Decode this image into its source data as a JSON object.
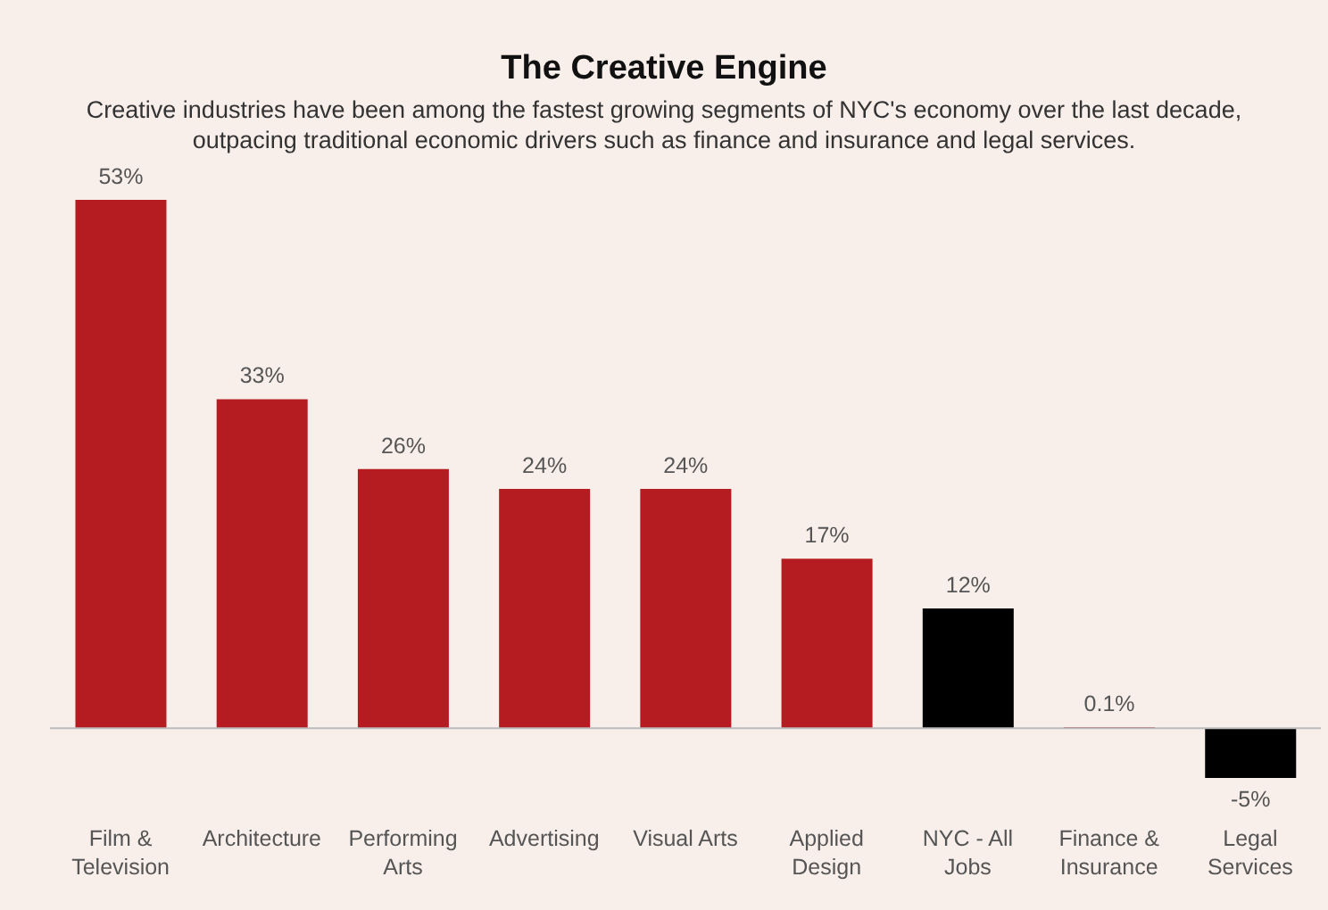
{
  "chart_data": {
    "type": "bar",
    "title": "The Creative Engine",
    "subtitle": "Creative industries have been among the fastest growing segments of NYC's economy over the last decade, outpacing traditional economic drivers such as finance and insurance and legal services.",
    "categories": [
      "Film & Television",
      "Architecture",
      "Performing Arts",
      "Advertising",
      "Visual Arts",
      "Applied Design",
      "NYC - All Jobs",
      "Finance & Insurance",
      "Legal Services"
    ],
    "values": [
      53,
      33,
      26,
      24,
      24,
      17,
      12,
      0.1,
      -5
    ],
    "colors": [
      "#b51c21",
      "#b51c21",
      "#b51c21",
      "#b51c21",
      "#b51c21",
      "#b51c21",
      "#000000",
      "#b51c21",
      "#000000"
    ],
    "value_labels": [
      "53%",
      "33%",
      "26%",
      "24%",
      "24%",
      "17%",
      "12%",
      "0.1%",
      "-5%"
    ],
    "grid": false,
    "legend": false
  }
}
